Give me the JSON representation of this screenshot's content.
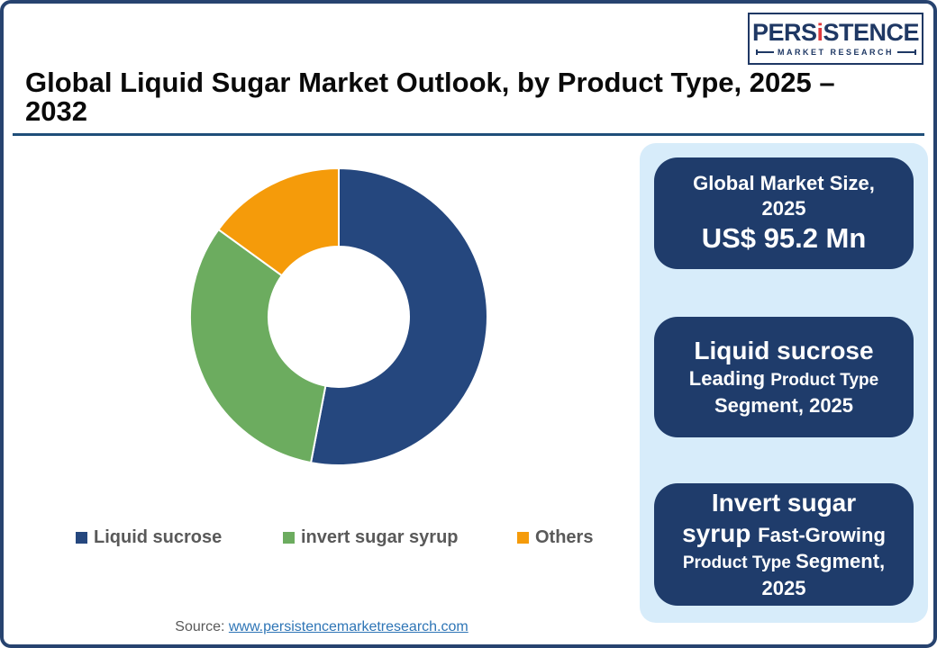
{
  "page": {
    "title": "Global Liquid Sugar Market Outlook, by Product Type, 2025 – 2032",
    "source_label": "Source:",
    "source_link": "www.persistencemarketresearch.com"
  },
  "logo": {
    "brand_pre": "PERS",
    "brand_i": "i",
    "brand_post": "STENCE",
    "tagline": "MARKET RESEARCH",
    "navy": "#1F3864",
    "red": "#E0393C"
  },
  "chart_data": {
    "type": "pie",
    "subtype": "donut",
    "title": "",
    "categories": [
      "Liquid sucrose",
      "invert sugar syrup",
      "Others"
    ],
    "values": [
      53,
      32,
      15
    ],
    "unit": "%",
    "colors": [
      "#25477E",
      "#6CAC5F",
      "#F59B0A"
    ],
    "start_angle_deg": 0,
    "direction": "clockwise",
    "inner_radius_ratio": 0.47,
    "legend_position": "bottom",
    "grid": false
  },
  "legend": {
    "items": [
      {
        "label": "Liquid sucrose",
        "color": "#25477E"
      },
      {
        "label": "invert sugar syrup",
        "color": "#6CAC5F"
      },
      {
        "label": "Others",
        "color": "#F59B0A"
      }
    ]
  },
  "info_panel": {
    "background": "#D7ECFA",
    "card_background": "#1F3C6B",
    "cards": [
      {
        "name": "market-size-card",
        "lines": [
          [
            {
              "t": "Global Market Size,",
              "s": "md"
            }
          ],
          [
            {
              "t": "2025",
              "s": "md"
            }
          ],
          [
            {
              "t": "US$ 95.2 Mn",
              "s": "xl"
            }
          ]
        ]
      },
      {
        "name": "leading-segment-card",
        "lines": [
          [
            {
              "t": "Liquid sucrose",
              "s": "lg"
            }
          ],
          [
            {
              "t": "Leading ",
              "s": "md"
            },
            {
              "t": "Product Type",
              "s": "sm"
            }
          ],
          [
            {
              "t": "Segment, 2025",
              "s": "md"
            }
          ]
        ]
      },
      {
        "name": "fast-growing-segment-card",
        "lines": [
          [
            {
              "t": "Invert sugar",
              "s": "lg"
            }
          ],
          [
            {
              "t": "syrup ",
              "s": "lg"
            },
            {
              "t": "Fast-Growing",
              "s": "md"
            }
          ],
          [
            {
              "t": "Product Type ",
              "s": "sm"
            },
            {
              "t": " Segment,",
              "s": "md"
            }
          ],
          [
            {
              "t": "2025",
              "s": "md"
            }
          ]
        ]
      }
    ]
  },
  "colors": {
    "frame_border": "#27436F",
    "title_rule": "#1F4E79",
    "panel_blue": "#D7ECFA",
    "card_navy": "#1F3C6B",
    "legend_text": "#595959",
    "link_blue": "#2E75B6"
  }
}
